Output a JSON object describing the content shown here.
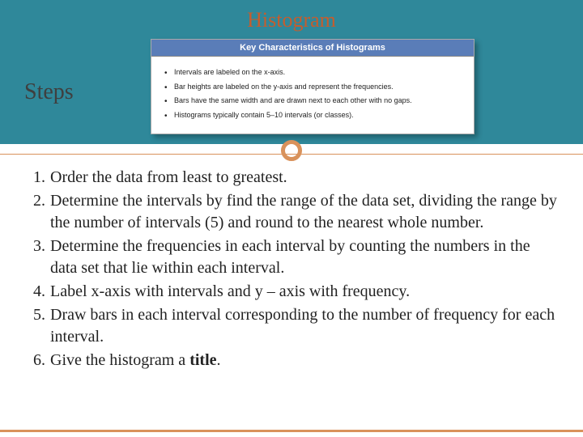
{
  "header": {
    "title": "Histogram"
  },
  "subheader": {
    "label": "Steps"
  },
  "info_box": {
    "title": "Key Characteristics of Histograms",
    "bullets": [
      "Intervals are labeled on the x-axis.",
      "Bar heights are labeled on the y-axis and represent the frequencies.",
      "Bars have the same width and are drawn next to each other with no gaps.",
      "Histograms typically contain 5–10 intervals (or classes)."
    ]
  },
  "steps": [
    "Order the data from least to greatest.",
    "Determine the intervals by find the range of the data set, dividing the range by the number of intervals (5) and round to the nearest whole number.",
    "Determine the frequencies in each interval by counting the numbers in the data set that lie within each interval.",
    "Label x-axis with intervals and y – axis with frequency.",
    "Draw bars in each interval corresponding to the number of frequency for each interval.",
    "Give the histogram a <b>title</b>."
  ],
  "colors": {
    "teal": "#2f889a",
    "orange": "#d9925b",
    "title_orange": "#c65d2d",
    "info_header": "#5a7db8"
  }
}
